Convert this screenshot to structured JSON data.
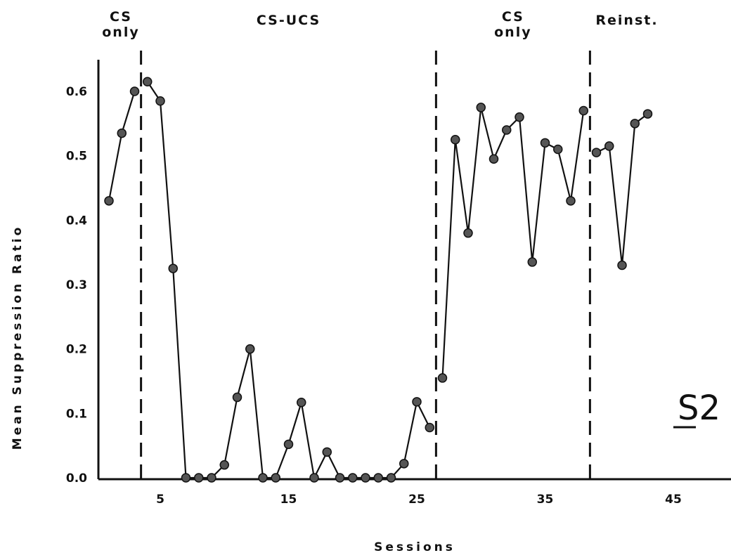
{
  "chart_data": {
    "type": "line",
    "xlabel": "Sessions",
    "ylabel": "Mean Suppression Ratio",
    "subject_label": "S2",
    "xlim": [
      0,
      50
    ],
    "ylim": [
      0,
      0.65
    ],
    "x_ticks": [
      5,
      15,
      25,
      35,
      45
    ],
    "y_ticks": [
      0.0,
      0.1,
      0.2,
      0.3,
      0.4,
      0.5,
      0.6
    ],
    "y_tick_labels": [
      "0.0",
      "0.1",
      "0.2",
      "0.3",
      "0.4",
      "0.5",
      "0.6"
    ],
    "grid": false,
    "legend": "none",
    "phases": [
      {
        "label": "CS\nonly",
        "x_start": 0,
        "x_end": 3.5
      },
      {
        "label": "CS-UCS",
        "x_start": 3.5,
        "x_end": 26.5
      },
      {
        "label": "CS\nonly",
        "x_start": 26.5,
        "x_end": 38.5
      },
      {
        "label": "Reinst.",
        "x_start": 38.5,
        "x_end": 50
      }
    ],
    "phase_boundaries": [
      3.5,
      26.5,
      38.5
    ],
    "segments": [
      {
        "x": [
          1,
          2,
          3
        ],
        "y": [
          0.43,
          0.535,
          0.6
        ]
      },
      {
        "x": [
          4,
          5,
          6,
          7,
          8,
          9,
          10,
          11,
          12,
          13,
          14,
          15,
          16,
          17,
          18,
          19,
          20,
          21,
          22,
          23,
          24,
          25,
          26
        ],
        "y": [
          0.615,
          0.585,
          0.325,
          0.0,
          0.0,
          0.0,
          0.02,
          0.125,
          0.2,
          0.0,
          0.0,
          0.052,
          0.117,
          0.0,
          0.04,
          0.0,
          0.0,
          0.0,
          0.0,
          0.0,
          0.022,
          0.118,
          0.078
        ]
      },
      {
        "x": [
          27,
          28,
          29,
          30,
          31,
          32,
          33,
          34,
          35,
          36,
          37,
          38
        ],
        "y": [
          0.155,
          0.525,
          0.38,
          0.575,
          0.495,
          0.54,
          0.56,
          0.335,
          0.52,
          0.51,
          0.43,
          0.57
        ]
      },
      {
        "x": [
          39,
          40,
          41,
          42,
          43
        ],
        "y": [
          0.505,
          0.515,
          0.33,
          0.55,
          0.565
        ]
      }
    ],
    "colors": {
      "line": "#111111",
      "marker": "#555555",
      "axis": "#111111"
    }
  }
}
